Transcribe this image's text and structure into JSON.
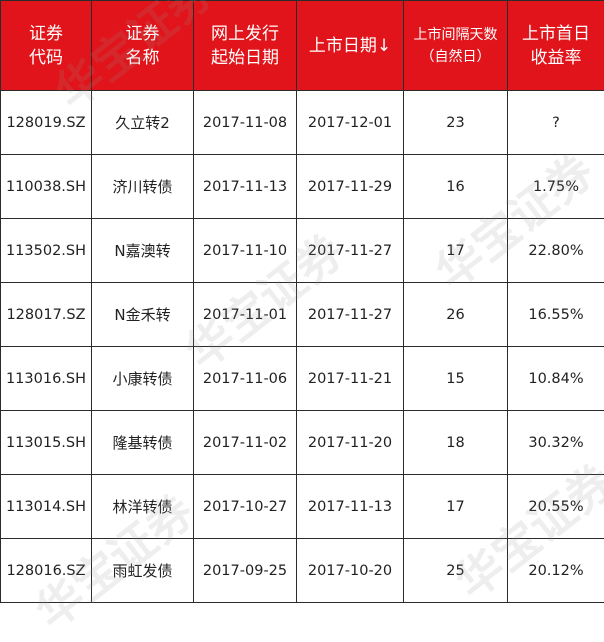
{
  "table": {
    "headers": [
      {
        "line1": "证券",
        "line2": "代码"
      },
      {
        "line1": "证券",
        "line2": "名称"
      },
      {
        "line1": "网上发行",
        "line2": "起始日期"
      },
      {
        "line1": "上市日期↓",
        "line2": ""
      },
      {
        "line1": "上市间隔天数",
        "line2": "（自然日）"
      },
      {
        "line1": "上市首日",
        "line2": "收益率"
      }
    ],
    "rows": [
      {
        "code": "128019.SZ",
        "name": "久立转2",
        "issue_date": "2017-11-08",
        "listing_date": "2017-12-01",
        "interval_days": "23",
        "first_day_return": "?"
      },
      {
        "code": "110038.SH",
        "name": "济川转债",
        "issue_date": "2017-11-13",
        "listing_date": "2017-11-29",
        "interval_days": "16",
        "first_day_return": "1.75%"
      },
      {
        "code": "113502.SH",
        "name": "N嘉澳转",
        "issue_date": "2017-11-10",
        "listing_date": "2017-11-27",
        "interval_days": "17",
        "first_day_return": "22.80%"
      },
      {
        "code": "128017.SZ",
        "name": "N金禾转",
        "issue_date": "2017-11-01",
        "listing_date": "2017-11-27",
        "interval_days": "26",
        "first_day_return": "16.55%"
      },
      {
        "code": "113016.SH",
        "name": "小康转债",
        "issue_date": "2017-11-06",
        "listing_date": "2017-11-21",
        "interval_days": "15",
        "first_day_return": "10.84%"
      },
      {
        "code": "113015.SH",
        "name": "隆基转债",
        "issue_date": "2017-11-02",
        "listing_date": "2017-11-20",
        "interval_days": "18",
        "first_day_return": "30.32%"
      },
      {
        "code": "113014.SH",
        "name": "林洋转债",
        "issue_date": "2017-10-27",
        "listing_date": "2017-11-13",
        "interval_days": "17",
        "first_day_return": "20.55%"
      },
      {
        "code": "128016.SZ",
        "name": "雨虹发债",
        "issue_date": "2017-09-25",
        "listing_date": "2017-10-20",
        "interval_days": "25",
        "first_day_return": "20.12%"
      }
    ]
  },
  "watermark": {
    "text": "华宝证券"
  },
  "colors": {
    "header_bg": "#e0141a",
    "header_text": "#ffffff",
    "border": "#2b2b2b",
    "cell_text": "#222222"
  }
}
